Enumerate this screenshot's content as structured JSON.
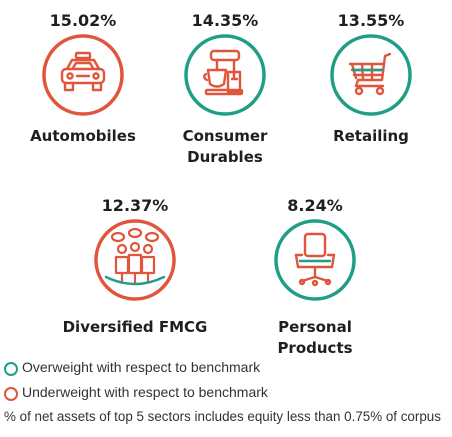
{
  "colors": {
    "overweight": "#1f9e86",
    "underweight": "#e0553c",
    "text": "#1f1f1f"
  },
  "chart_data": {
    "type": "infographic",
    "series": [
      {
        "category": "Automobiles",
        "label_lines": [
          "Automobiles"
        ],
        "value": 15.02,
        "value_label": "15.02%",
        "weight": "underweight",
        "icon": "car-icon"
      },
      {
        "category": "Consumer Durables",
        "label_lines": [
          "Consumer",
          "Durables"
        ],
        "value": 14.35,
        "value_label": "14.35%",
        "weight": "overweight",
        "icon": "mixer-icon"
      },
      {
        "category": "Retailing",
        "label_lines": [
          "Retailing"
        ],
        "value": 13.55,
        "value_label": "13.55%",
        "weight": "overweight",
        "icon": "shopping-cart-icon"
      },
      {
        "category": "Diversified FMCG",
        "label_lines": [
          "Diversified FMCG"
        ],
        "value": 12.37,
        "value_label": "12.37%",
        "weight": "underweight",
        "icon": "consumers-icon"
      },
      {
        "category": "Personal Products",
        "label_lines": [
          "Personal Products"
        ],
        "value": 8.24,
        "value_label": "8.24%",
        "weight": "overweight",
        "icon": "chair-icon"
      }
    ],
    "legend": [
      {
        "label": "Overweight with respect to benchmark",
        "weight": "overweight"
      },
      {
        "label": "Underweight with respect to benchmark",
        "weight": "underweight"
      }
    ],
    "footnote": "% of net assets of top 5 sectors includes equity less than 0.75% of corpus"
  }
}
